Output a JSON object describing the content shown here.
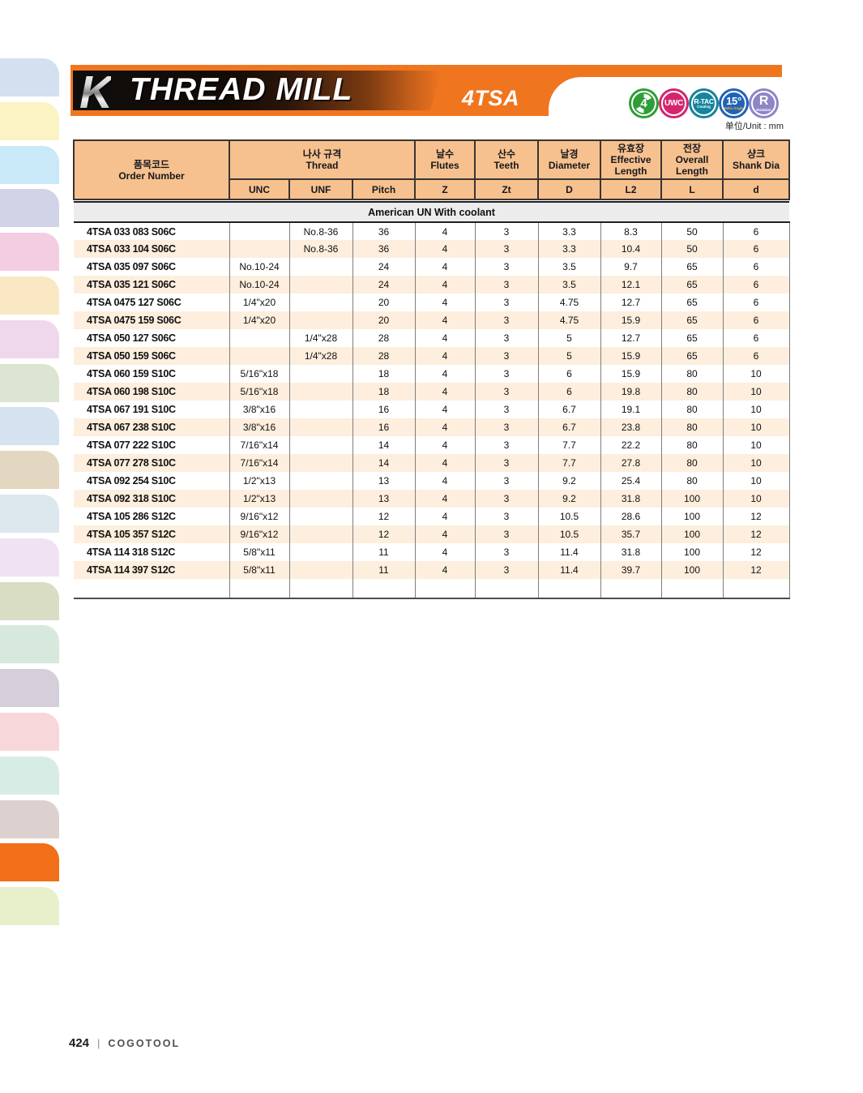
{
  "header": {
    "logo_letter": "K",
    "title": "THREAD MILL",
    "series_code": "4TSA",
    "banner_orange": "#f0751f"
  },
  "badges": [
    {
      "name": "four-flutes-icon",
      "label": "4",
      "sub": "",
      "color": "#2f9e36",
      "swirl": true
    },
    {
      "name": "uwc-icon",
      "label": "UWC",
      "sub": "",
      "color": "#d5256f",
      "swirl": false
    },
    {
      "name": "r-tac-coating-icon",
      "label": "R-TAC",
      "sub": "Coating",
      "color": "#15849e",
      "swirl": false
    },
    {
      "name": "helix-angle-15-icon",
      "label": "15°",
      "sub": "Helix Angle",
      "color": "#2063b6",
      "sub_color": "#f9b233",
      "swirl": false
    },
    {
      "name": "rotation-icon",
      "label": "R",
      "sub": "Rotation",
      "color": "#8e85c6",
      "swirl": false
    }
  ],
  "unit_label": "单位/Unit : mm",
  "table": {
    "headers": {
      "order_ko": "품목코드",
      "order_en": "Order Number",
      "thread_ko": "나사 규격",
      "thread_en": "Thread",
      "unc": "UNC",
      "unf": "UNF",
      "pitch": "Pitch",
      "flutes_ko": "날수",
      "flutes_en": "Flutes",
      "flutes_sym": "Z",
      "teeth_ko": "산수",
      "teeth_en": "Teeth",
      "teeth_sym": "Zt",
      "dia_ko": "날경",
      "dia_en": "Diameter",
      "dia_sym": "D",
      "eff_ko": "유효장",
      "eff_en": "Effective Length",
      "eff_sym": "L2",
      "oal_ko": "전장",
      "oal_en": "Overall Length",
      "oal_sym": "L",
      "shank_ko": "샹크",
      "shank_en": "Shank Dia",
      "shank_sym": "d"
    },
    "section_title": "American UN With coolant",
    "rows": [
      [
        "4TSA 033 083 S06C",
        "",
        "No.8-36",
        "36",
        "4",
        "3",
        "3.3",
        "8.3",
        "50",
        "6"
      ],
      [
        "4TSA 033 104 S06C",
        "",
        "No.8-36",
        "36",
        "4",
        "3",
        "3.3",
        "10.4",
        "50",
        "6"
      ],
      [
        "4TSA 035 097 S06C",
        "No.10-24",
        "",
        "24",
        "4",
        "3",
        "3.5",
        "9.7",
        "65",
        "6"
      ],
      [
        "4TSA 035 121 S06C",
        "No.10-24",
        "",
        "24",
        "4",
        "3",
        "3.5",
        "12.1",
        "65",
        "6"
      ],
      [
        "4TSA 0475 127 S06C",
        "1/4\"x20",
        "",
        "20",
        "4",
        "3",
        "4.75",
        "12.7",
        "65",
        "6"
      ],
      [
        "4TSA 0475 159 S06C",
        "1/4\"x20",
        "",
        "20",
        "4",
        "3",
        "4.75",
        "15.9",
        "65",
        "6"
      ],
      [
        "4TSA 050 127 S06C",
        "",
        "1/4\"x28",
        "28",
        "4",
        "3",
        "5",
        "12.7",
        "65",
        "6"
      ],
      [
        "4TSA 050 159 S06C",
        "",
        "1/4\"x28",
        "28",
        "4",
        "3",
        "5",
        "15.9",
        "65",
        "6"
      ],
      [
        "4TSA 060 159 S10C",
        "5/16\"x18",
        "",
        "18",
        "4",
        "3",
        "6",
        "15.9",
        "80",
        "10"
      ],
      [
        "4TSA 060 198 S10C",
        "5/16\"x18",
        "",
        "18",
        "4",
        "3",
        "6",
        "19.8",
        "80",
        "10"
      ],
      [
        "4TSA 067 191 S10C",
        "3/8\"x16",
        "",
        "16",
        "4",
        "3",
        "6.7",
        "19.1",
        "80",
        "10"
      ],
      [
        "4TSA 067 238 S10C",
        "3/8\"x16",
        "",
        "16",
        "4",
        "3",
        "6.7",
        "23.8",
        "80",
        "10"
      ],
      [
        "4TSA 077 222 S10C",
        "7/16\"x14",
        "",
        "14",
        "4",
        "3",
        "7.7",
        "22.2",
        "80",
        "10"
      ],
      [
        "4TSA 077 278 S10C",
        "7/16\"x14",
        "",
        "14",
        "4",
        "3",
        "7.7",
        "27.8",
        "80",
        "10"
      ],
      [
        "4TSA 092 254 S10C",
        "1/2\"x13",
        "",
        "13",
        "4",
        "3",
        "9.2",
        "25.4",
        "80",
        "10"
      ],
      [
        "4TSA 092 318 S10C",
        "1/2\"x13",
        "",
        "13",
        "4",
        "3",
        "9.2",
        "31.8",
        "100",
        "10"
      ],
      [
        "4TSA 105 286 S12C",
        "9/16\"x12",
        "",
        "12",
        "4",
        "3",
        "10.5",
        "28.6",
        "100",
        "12"
      ],
      [
        "4TSA 105 357 S12C",
        "9/16\"x12",
        "",
        "12",
        "4",
        "3",
        "10.5",
        "35.7",
        "100",
        "12"
      ],
      [
        "4TSA 114 318 S12C",
        "5/8\"x11",
        "",
        "11",
        "4",
        "3",
        "11.4",
        "31.8",
        "100",
        "12"
      ],
      [
        "4TSA 114 397 S12C",
        "5/8\"x11",
        "",
        "11",
        "4",
        "3",
        "11.4",
        "39.7",
        "100",
        "12"
      ]
    ]
  },
  "sidebar": {
    "active_color": "#f06f18",
    "tabs": [
      {
        "color": "#d2e0ef",
        "active": false
      },
      {
        "color": "#fcf3c5",
        "active": false
      },
      {
        "color": "#c9e8f8",
        "active": false
      },
      {
        "color": "#d1d4e7",
        "active": false
      },
      {
        "color": "#f3cde2",
        "active": false
      },
      {
        "color": "#fae8c5",
        "active": false
      },
      {
        "color": "#f0d8ec",
        "active": false
      },
      {
        "color": "#dce5d1",
        "active": false
      },
      {
        "color": "#d5e3f0",
        "active": false
      },
      {
        "color": "#e4d7c1",
        "active": false
      },
      {
        "color": "#dde7ee",
        "active": false
      },
      {
        "color": "#f0e2f3",
        "active": false
      },
      {
        "color": "#d9ddc3",
        "active": false
      },
      {
        "color": "#d7e8dd",
        "active": false
      },
      {
        "color": "#d5cfdc",
        "active": false
      },
      {
        "color": "#f8d7db",
        "active": false
      },
      {
        "color": "#d8ece6",
        "active": false
      },
      {
        "color": "#ddd1cf",
        "active": false
      },
      {
        "color": "#f06f18",
        "active": true
      },
      {
        "color": "#e7f0cb",
        "active": false
      }
    ]
  },
  "footer": {
    "page_number": "424",
    "separator": "|",
    "brand": "COGOTOOL"
  }
}
